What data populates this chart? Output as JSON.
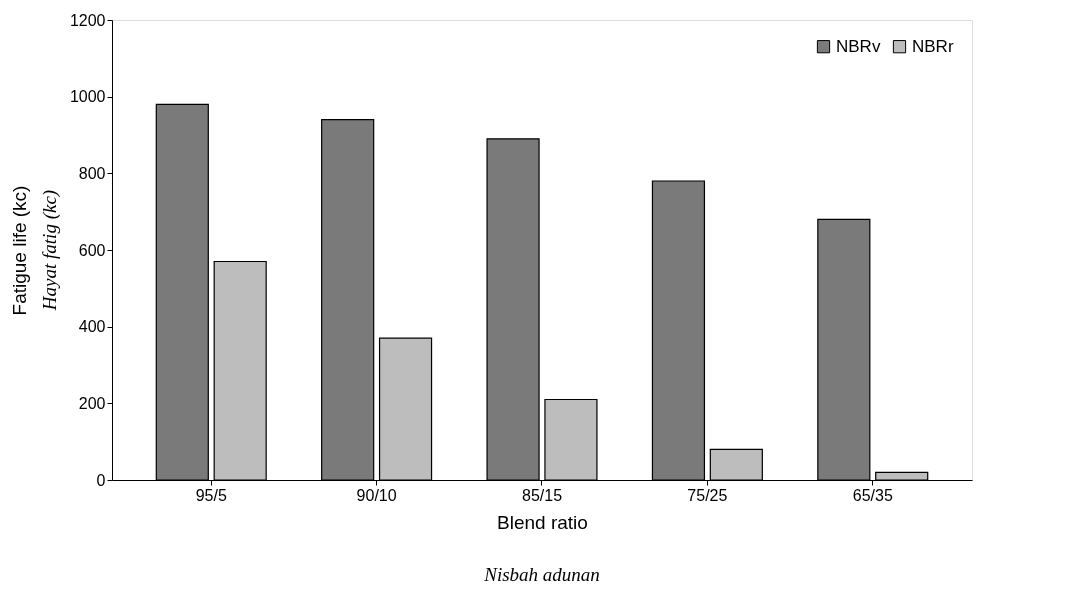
{
  "chart_data": {
    "type": "bar",
    "xlabel": "Blend ratio",
    "ylabel": "Fatigue life (kc)",
    "annotations": [
      "Hayat fatig (kc)",
      "Nisbah adunan"
    ],
    "categories": [
      "95/5",
      "90/10",
      "85/15",
      "75/25",
      "65/35"
    ],
    "series": [
      {
        "name": "NBRv",
        "color": "#7a7a7a",
        "values": [
          980,
          940,
          890,
          780,
          680
        ]
      },
      {
        "name": "NBRr",
        "color": "#bdbdbd",
        "values": [
          570,
          370,
          210,
          80,
          20
        ]
      }
    ],
    "ylim": [
      0,
      1200
    ],
    "yticks": [
      0,
      200,
      400,
      600,
      800,
      1000,
      1200
    ],
    "grid": false,
    "legend": "top right"
  }
}
